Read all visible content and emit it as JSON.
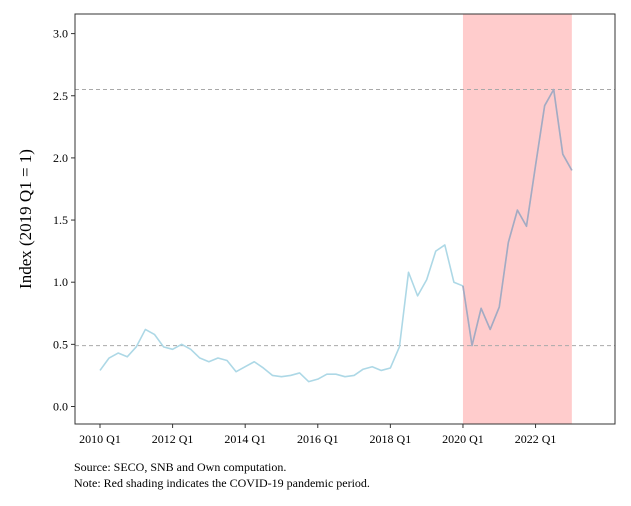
{
  "chart_data": {
    "type": "line",
    "title": "",
    "xlabel": "",
    "ylabel": "Index (2019 Q1 = 1)",
    "x_start": "2010 Q1",
    "x_ticks": [
      "2010 Q1",
      "2012 Q1",
      "2014 Q1",
      "2016 Q1",
      "2018 Q1",
      "2020 Q1",
      "2022 Q1"
    ],
    "y_ticks": [
      "0.0",
      "0.5",
      "1.0",
      "1.5",
      "2.0",
      "2.5",
      "3.0"
    ],
    "xlim": [
      "2010 Q1",
      "2023 Q3"
    ],
    "ylim": [
      -0.12,
      3.15
    ],
    "grid": false,
    "series": [
      {
        "x": [
          "2010 Q1",
          "2010 Q2",
          "2010 Q3",
          "2010 Q4",
          "2011 Q1",
          "2011 Q2",
          "2011 Q3",
          "2011 Q4",
          "2012 Q1",
          "2012 Q2",
          "2012 Q3",
          "2012 Q4",
          "2013 Q1",
          "2013 Q2",
          "2013 Q3",
          "2013 Q4",
          "2014 Q1",
          "2014 Q2",
          "2014 Q3",
          "2014 Q4",
          "2015 Q1",
          "2015 Q2",
          "2015 Q3",
          "2015 Q4",
          "2016 Q1",
          "2016 Q2",
          "2016 Q3",
          "2016 Q4",
          "2017 Q1",
          "2017 Q2",
          "2017 Q3",
          "2017 Q4",
          "2018 Q1",
          "2018 Q2",
          "2018 Q3",
          "2018 Q4",
          "2019 Q1",
          "2019 Q2",
          "2019 Q3",
          "2019 Q4",
          "2020 Q1",
          "2020 Q2",
          "2020 Q3",
          "2020 Q4",
          "2021 Q1",
          "2021 Q2",
          "2021 Q3",
          "2021 Q4",
          "2022 Q1",
          "2022 Q2",
          "2022 Q3",
          "2022 Q4",
          "2023 Q1"
        ],
        "values": [
          0.29,
          0.39,
          0.43,
          0.4,
          0.48,
          0.62,
          0.58,
          0.48,
          0.46,
          0.5,
          0.46,
          0.39,
          0.36,
          0.39,
          0.37,
          0.28,
          0.32,
          0.36,
          0.31,
          0.25,
          0.24,
          0.25,
          0.27,
          0.2,
          0.22,
          0.26,
          0.26,
          0.24,
          0.25,
          0.3,
          0.32,
          0.29,
          0.31,
          0.48,
          1.08,
          0.89,
          1.02,
          1.25,
          1.3,
          1.0,
          0.97,
          0.49,
          0.79,
          0.62,
          0.8,
          1.32,
          1.58,
          1.45,
          1.94,
          2.42,
          2.55,
          2.03,
          1.9
        ],
        "color": "#add8e6",
        "overlap_color": "#a6a9c1"
      }
    ],
    "reference_lines": [
      0.49,
      2.55
    ],
    "shaded_region": {
      "from": "2020 Q1",
      "to": "2023 Q1",
      "color": "#ffcccc"
    }
  },
  "notes": {
    "source": "Source: SECO, SNB and Own computation.",
    "shading": "Note: Red shading indicates the COVID-19 pandemic period."
  }
}
